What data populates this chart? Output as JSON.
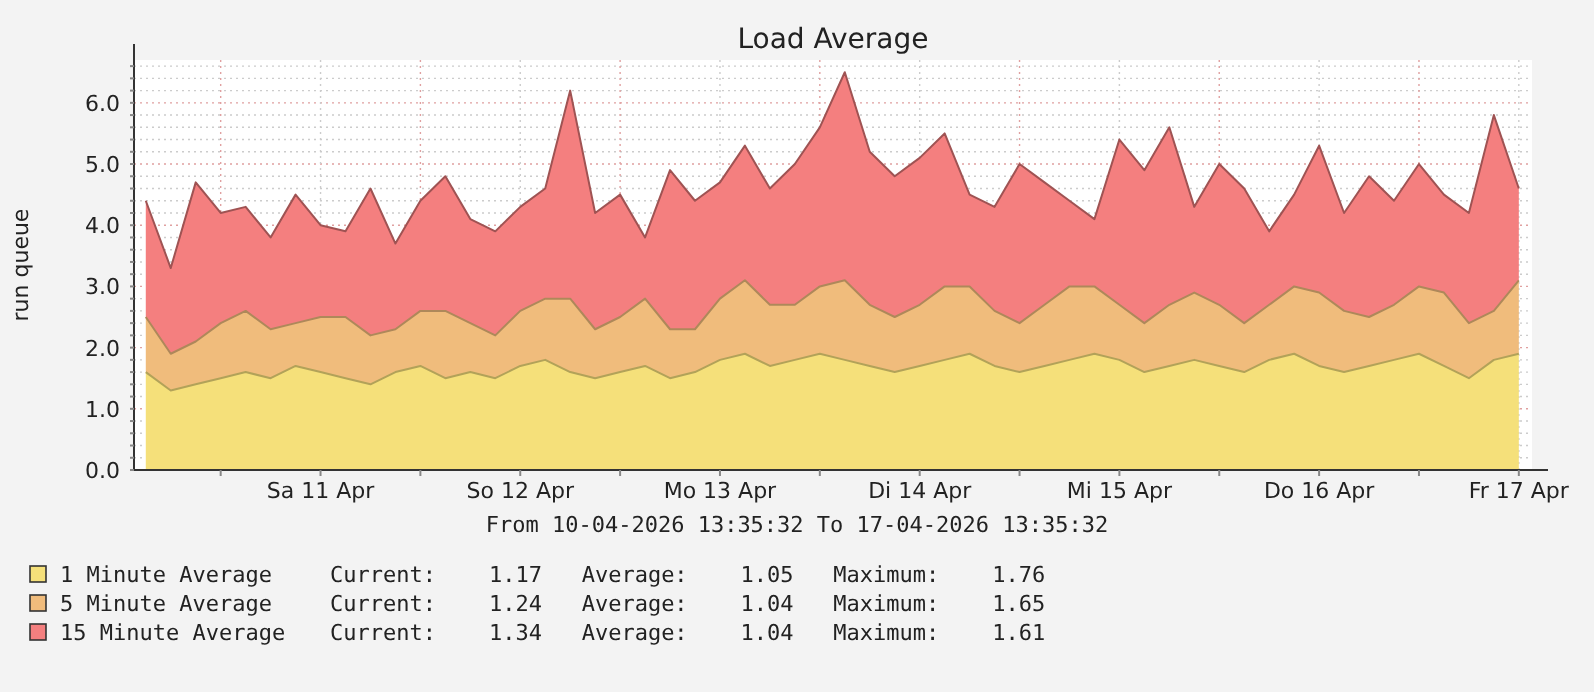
{
  "chart_data": {
    "type": "area",
    "stacked": true,
    "title": "Load Average",
    "ylabel": "run queue",
    "xlim": [
      "2026-04-10T13:35",
      "2026-04-17T13:35"
    ],
    "xticks": [
      {
        "value": "2026-04-11T00:00",
        "label": null
      },
      {
        "value": "2026-04-11T12:00",
        "label": "Sa 11 Apr"
      },
      {
        "value": "2026-04-12T00:00",
        "label": null
      },
      {
        "value": "2026-04-12T12:00",
        "label": "So 12 Apr"
      },
      {
        "value": "2026-04-13T00:00",
        "label": null
      },
      {
        "value": "2026-04-13T12:00",
        "label": "Mo 13 Apr"
      },
      {
        "value": "2026-04-14T00:00",
        "label": null
      },
      {
        "value": "2026-04-14T12:00",
        "label": "Di 14 Apr"
      },
      {
        "value": "2026-04-15T00:00",
        "label": null
      },
      {
        "value": "2026-04-15T12:00",
        "label": "Mi 15 Apr"
      },
      {
        "value": "2026-04-16T00:00",
        "label": null
      },
      {
        "value": "2026-04-16T12:00",
        "label": "Do 16 Apr"
      },
      {
        "value": "2026-04-17T00:00",
        "label": null
      },
      {
        "value": "2026-04-17T12:00",
        "label": "Fr 17 Apr"
      }
    ],
    "ylim": [
      0,
      6.7
    ],
    "yticks": [
      {
        "value": 0,
        "label": "0.0"
      },
      {
        "value": 0.2,
        "label": null
      },
      {
        "value": 0.4,
        "label": null
      },
      {
        "value": 0.6,
        "label": null
      },
      {
        "value": 0.8,
        "label": null
      },
      {
        "value": 1,
        "label": "1.0"
      },
      {
        "value": 1.2,
        "label": null
      },
      {
        "value": 1.4,
        "label": null
      },
      {
        "value": 1.6,
        "label": null
      },
      {
        "value": 1.8,
        "label": null
      },
      {
        "value": 2,
        "label": "2.0"
      },
      {
        "value": 2.2,
        "label": null
      },
      {
        "value": 2.4,
        "label": null
      },
      {
        "value": 2.6,
        "label": null
      },
      {
        "value": 2.8,
        "label": null
      },
      {
        "value": 3,
        "label": "3.0"
      },
      {
        "value": 3.2,
        "label": null
      },
      {
        "value": 3.4,
        "label": null
      },
      {
        "value": 3.6,
        "label": null
      },
      {
        "value": 3.8,
        "label": null
      },
      {
        "value": 4,
        "label": "4.0"
      },
      {
        "value": 4.2,
        "label": null
      },
      {
        "value": 4.4,
        "label": null
      },
      {
        "value": 4.6,
        "label": null
      },
      {
        "value": 4.8,
        "label": null
      },
      {
        "value": 5,
        "label": "5.0"
      },
      {
        "value": 5.2,
        "label": null
      },
      {
        "value": 5.4,
        "label": null
      },
      {
        "value": 5.6,
        "label": null
      },
      {
        "value": 5.8,
        "label": null
      },
      {
        "value": 6,
        "label": "6.0"
      },
      {
        "value": 6.2,
        "label": null
      },
      {
        "value": 6.4,
        "label": null
      },
      {
        "value": 6.6,
        "label": null
      }
    ],
    "grid": true,
    "legend": "bottom",
    "x": [
      "2026-04-10T15:00",
      "2026-04-10T18:00",
      "2026-04-10T21:00",
      "2026-04-11T00:00",
      "2026-04-11T03:00",
      "2026-04-11T06:00",
      "2026-04-11T09:00",
      "2026-04-11T12:00",
      "2026-04-11T15:00",
      "2026-04-11T18:00",
      "2026-04-11T21:00",
      "2026-04-12T00:00",
      "2026-04-12T03:00",
      "2026-04-12T06:00",
      "2026-04-12T09:00",
      "2026-04-12T12:00",
      "2026-04-12T15:00",
      "2026-04-12T18:00",
      "2026-04-12T21:00",
      "2026-04-13T00:00",
      "2026-04-13T03:00",
      "2026-04-13T06:00",
      "2026-04-13T09:00",
      "2026-04-13T12:00",
      "2026-04-13T15:00",
      "2026-04-13T18:00",
      "2026-04-13T21:00",
      "2026-04-14T00:00",
      "2026-04-14T03:00",
      "2026-04-14T06:00",
      "2026-04-14T09:00",
      "2026-04-14T12:00",
      "2026-04-14T15:00",
      "2026-04-14T18:00",
      "2026-04-14T21:00",
      "2026-04-15T00:00",
      "2026-04-15T03:00",
      "2026-04-15T06:00",
      "2026-04-15T09:00",
      "2026-04-15T12:00",
      "2026-04-15T15:00",
      "2026-04-15T18:00",
      "2026-04-15T21:00",
      "2026-04-16T00:00",
      "2026-04-16T03:00",
      "2026-04-16T06:00",
      "2026-04-16T09:00",
      "2026-04-16T12:00",
      "2026-04-16T15:00",
      "2026-04-16T18:00",
      "2026-04-16T21:00",
      "2026-04-17T00:00",
      "2026-04-17T03:00",
      "2026-04-17T06:00",
      "2026-04-17T09:00",
      "2026-04-17T12:00"
    ],
    "series": [
      {
        "name": "1 Minute Average",
        "color": "#f5e07a",
        "values": [
          1.6,
          1.3,
          1.4,
          1.5,
          1.6,
          1.5,
          1.7,
          1.6,
          1.5,
          1.4,
          1.6,
          1.7,
          1.5,
          1.6,
          1.5,
          1.7,
          1.8,
          1.6,
          1.5,
          1.6,
          1.7,
          1.5,
          1.6,
          1.8,
          1.9,
          1.7,
          1.8,
          1.9,
          1.8,
          1.7,
          1.6,
          1.7,
          1.8,
          1.9,
          1.7,
          1.6,
          1.7,
          1.8,
          1.9,
          1.8,
          1.6,
          1.7,
          1.8,
          1.7,
          1.6,
          1.8,
          1.9,
          1.7,
          1.6,
          1.7,
          1.8,
          1.9,
          1.7,
          1.5,
          1.8,
          1.9
        ]
      },
      {
        "name": "5 Minute Average",
        "color": "#f0bc7c",
        "values": [
          0.9,
          0.6,
          0.7,
          0.9,
          1.0,
          0.8,
          0.7,
          0.9,
          1.0,
          0.8,
          0.7,
          0.9,
          1.1,
          0.8,
          0.7,
          0.9,
          1.0,
          1.2,
          0.8,
          0.9,
          1.1,
          0.8,
          0.7,
          1.0,
          1.2,
          1.0,
          0.9,
          1.1,
          1.3,
          1.0,
          0.9,
          1.0,
          1.2,
          1.1,
          0.9,
          0.8,
          1.0,
          1.2,
          1.1,
          0.9,
          0.8,
          1.0,
          1.1,
          1.0,
          0.8,
          0.9,
          1.1,
          1.2,
          1.0,
          0.8,
          0.9,
          1.1,
          1.2,
          0.9,
          0.8,
          1.2
        ]
      },
      {
        "name": "15 Minute Average",
        "color": "#f47f7f",
        "values": [
          1.9,
          1.4,
          2.6,
          1.8,
          1.7,
          1.5,
          2.1,
          1.5,
          1.4,
          2.4,
          1.4,
          1.8,
          2.2,
          1.7,
          1.7,
          1.7,
          1.8,
          3.4,
          1.9,
          2.0,
          1.0,
          2.6,
          2.1,
          1.9,
          2.2,
          1.9,
          2.3,
          2.6,
          3.4,
          2.5,
          2.3,
          2.4,
          2.5,
          1.5,
          1.7,
          2.6,
          2.0,
          1.4,
          1.1,
          2.7,
          2.5,
          2.9,
          1.4,
          2.3,
          2.2,
          1.2,
          1.5,
          2.4,
          1.6,
          2.3,
          1.7,
          2.0,
          1.6,
          1.8,
          3.2,
          1.5
        ]
      }
    ],
    "annotations": [
      "From 10-04-2026 13:35:32 To 17-04-2026 13:35:32",
      "Current:    1.17   Average:    1.05   Maximum:    1.76",
      "Current:    1.24   Average:    1.04   Maximum:    1.65",
      "Current:    1.34   Average:    1.04   Maximum:    1.61"
    ]
  }
}
